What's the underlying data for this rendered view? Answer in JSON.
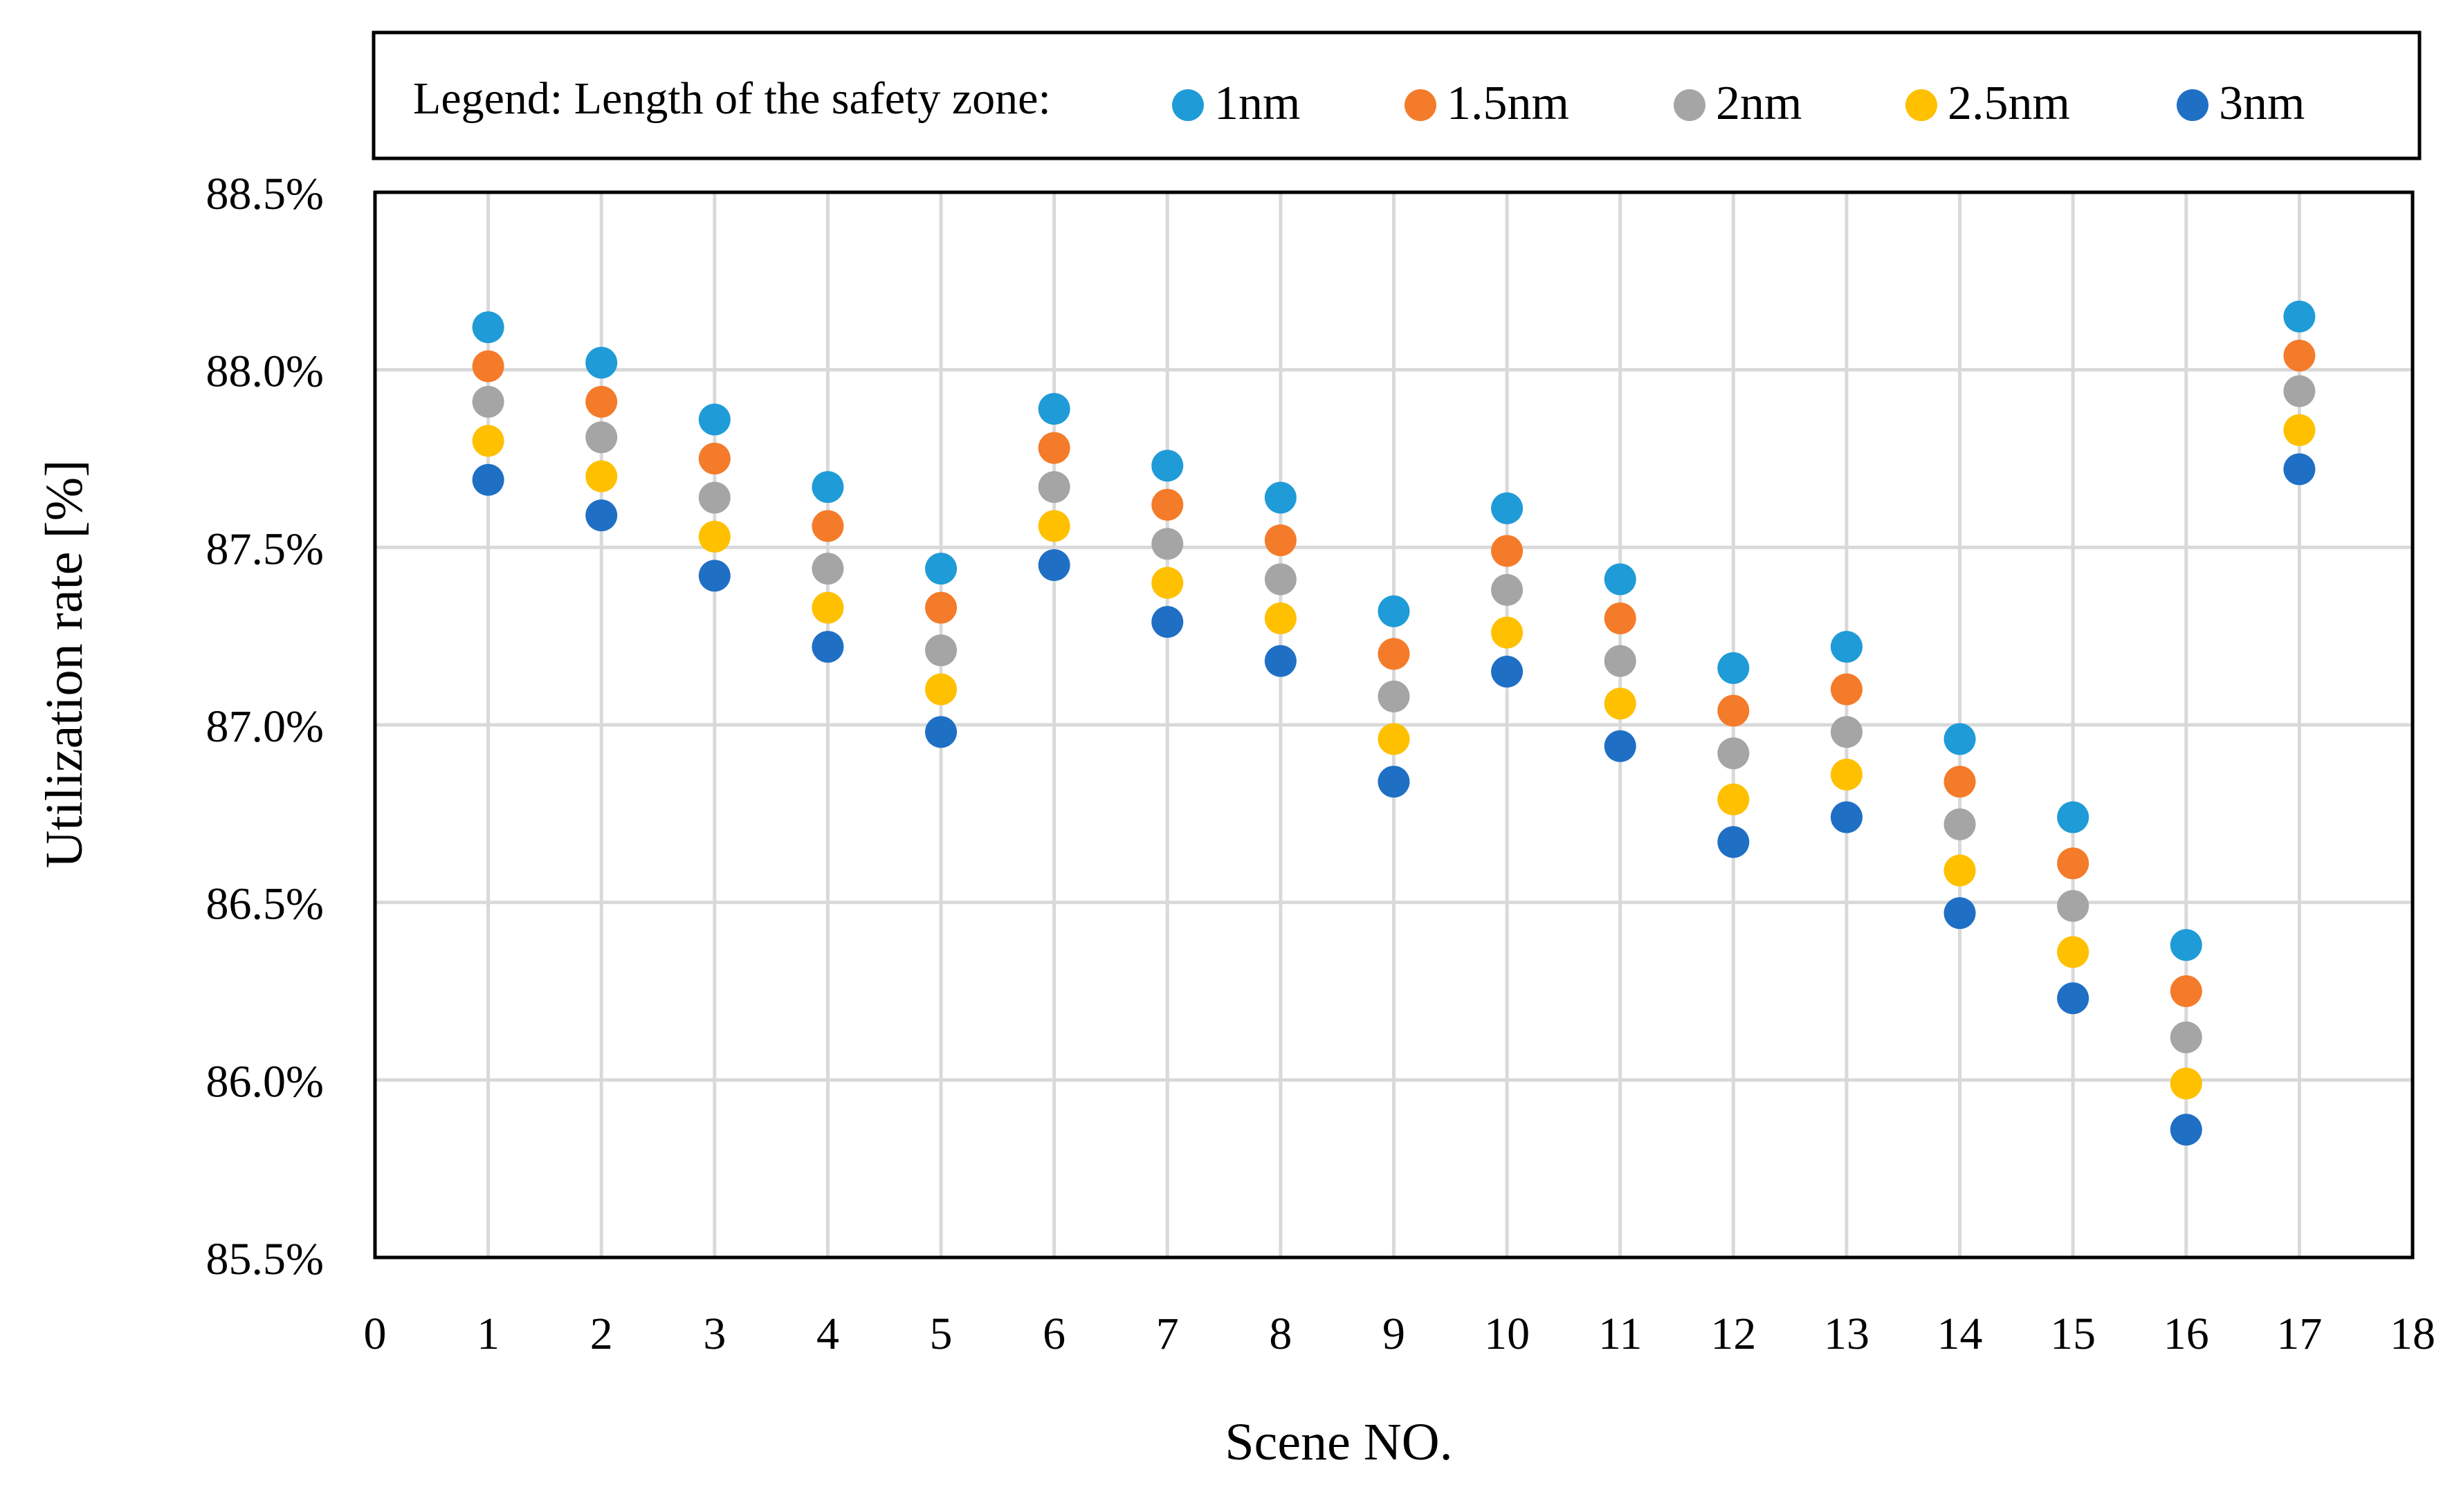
{
  "chart_data": {
    "type": "scatter",
    "title": "",
    "xlabel": "Scene NO.",
    "ylabel": "Utilization rate [%]",
    "xlim": [
      0,
      18
    ],
    "ylim": [
      85.5,
      88.5
    ],
    "x_ticks": [
      0,
      1,
      2,
      3,
      4,
      5,
      6,
      7,
      8,
      9,
      10,
      11,
      12,
      13,
      14,
      15,
      16,
      17,
      18
    ],
    "y_ticks": [
      "85.5%",
      "86.0%",
      "86.5%",
      "87.0%",
      "87.5%",
      "88.0%",
      "88.5%"
    ],
    "y_tick_values": [
      85.5,
      86.0,
      86.5,
      87.0,
      87.5,
      88.0,
      88.5
    ],
    "grid": true,
    "legend_title": "Legend: Length of the safety zone:",
    "legend_position": "top",
    "x": [
      1,
      2,
      3,
      4,
      5,
      6,
      7,
      8,
      9,
      10,
      11,
      12,
      13,
      14,
      15,
      16,
      17
    ],
    "series": [
      {
        "name": "1nm",
        "color": "#1f9bd7",
        "values": [
          88.12,
          88.02,
          87.86,
          87.67,
          87.44,
          87.89,
          87.73,
          87.64,
          87.32,
          87.61,
          87.41,
          87.16,
          87.22,
          86.96,
          86.74,
          86.38,
          88.15
        ]
      },
      {
        "name": "1.5nm",
        "color": "#f47b2a",
        "values": [
          88.01,
          87.91,
          87.75,
          87.56,
          87.33,
          87.78,
          87.62,
          87.52,
          87.2,
          87.49,
          87.3,
          87.04,
          87.1,
          86.84,
          86.61,
          86.25,
          88.04
        ]
      },
      {
        "name": "2nm",
        "color": "#a5a5a5",
        "values": [
          87.91,
          87.81,
          87.64,
          87.44,
          87.21,
          87.67,
          87.51,
          87.41,
          87.08,
          87.38,
          87.18,
          86.92,
          86.98,
          86.72,
          86.49,
          86.12,
          87.94
        ]
      },
      {
        "name": "2.5nm",
        "color": "#ffc000",
        "values": [
          87.8,
          87.7,
          87.53,
          87.33,
          87.1,
          87.56,
          87.4,
          87.3,
          86.96,
          87.26,
          87.06,
          86.79,
          86.86,
          86.59,
          86.36,
          85.99,
          87.83
        ]
      },
      {
        "name": "3nm",
        "color": "#1f6fc5",
        "values": [
          87.69,
          87.59,
          87.42,
          87.22,
          86.98,
          87.45,
          87.29,
          87.18,
          86.84,
          87.15,
          86.94,
          86.67,
          86.74,
          86.47,
          86.23,
          85.86,
          87.72
        ]
      }
    ]
  }
}
